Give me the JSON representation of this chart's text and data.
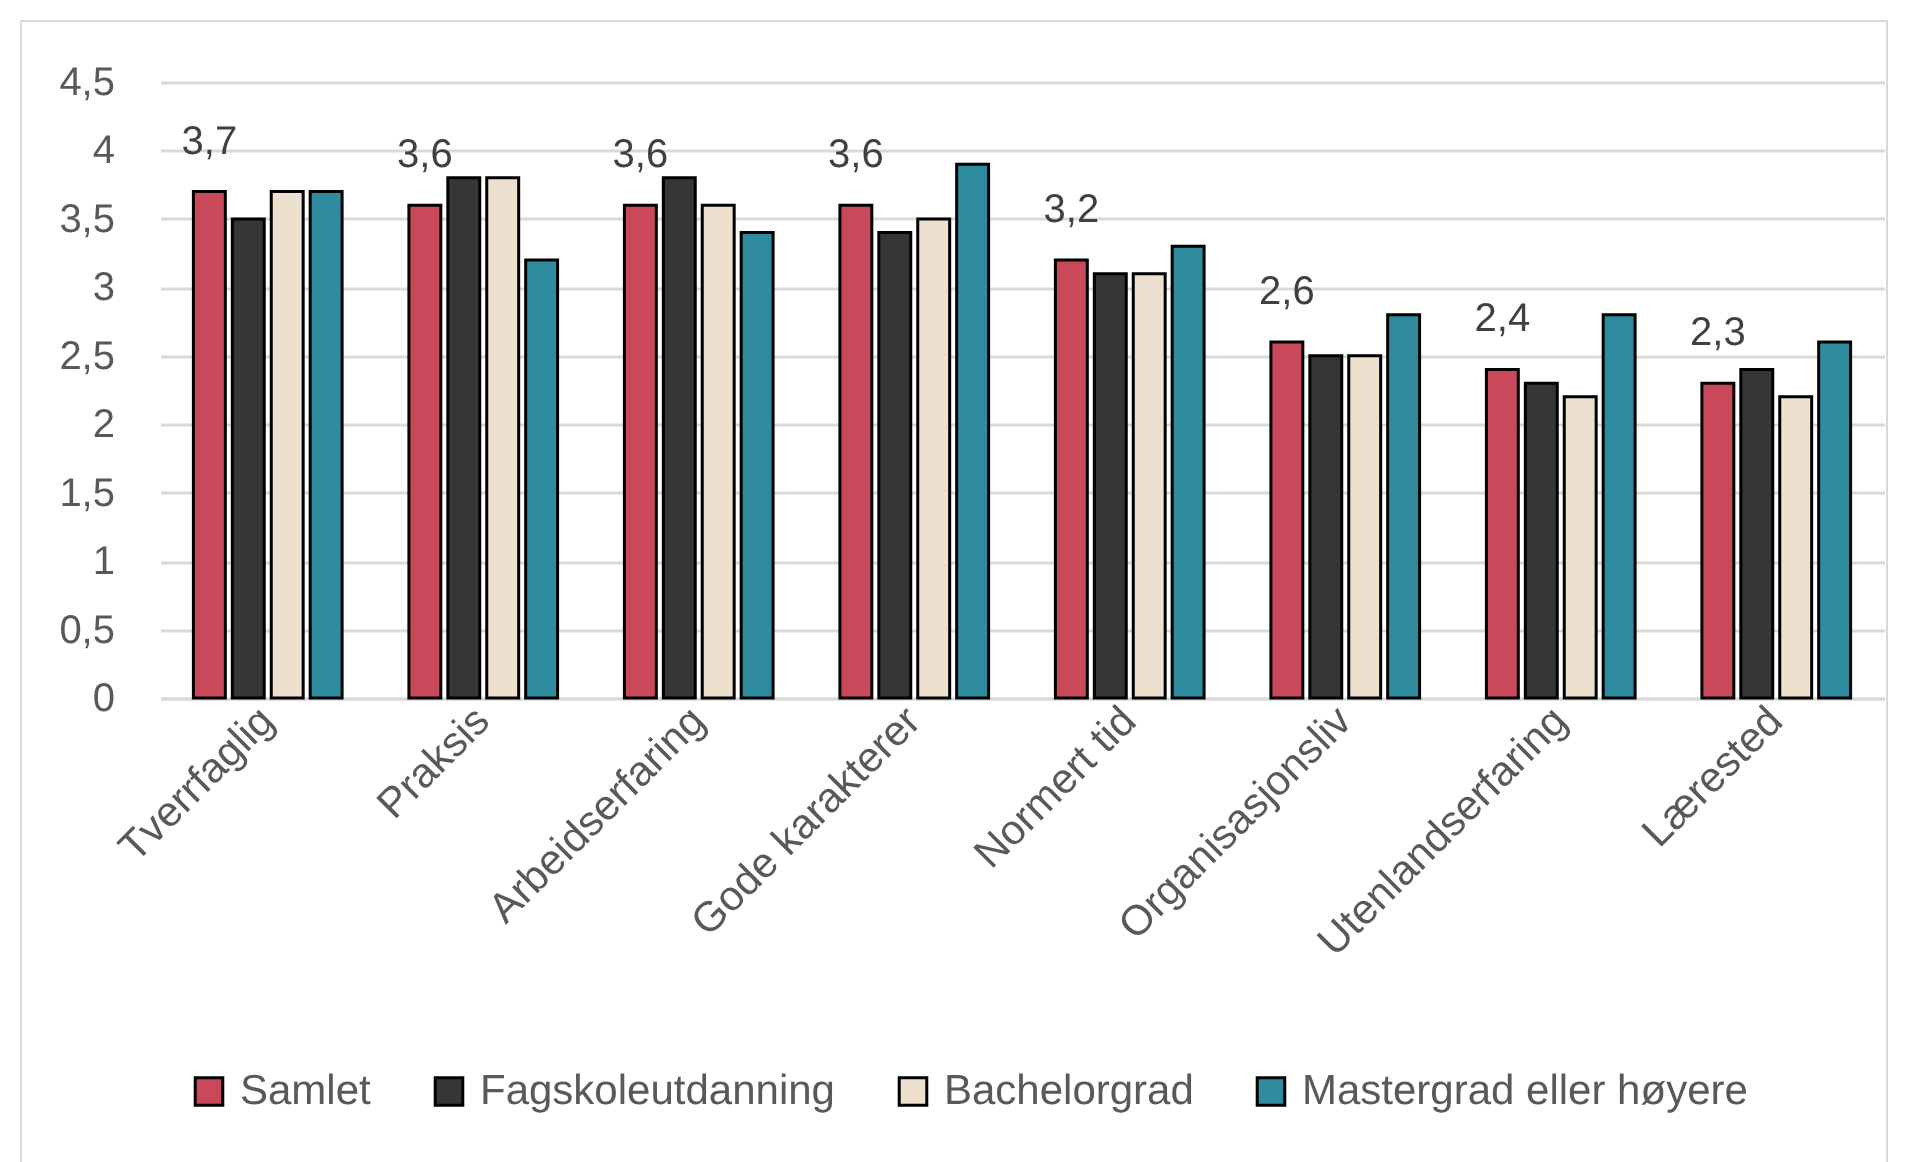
{
  "chart_data": {
    "type": "bar",
    "categories": [
      "Tverrfaglig",
      "Praksis",
      "Arbeidserfaring",
      "Gode karakterer",
      "Normert tid",
      "Organisasjonsliv",
      "Utenlandserfaring",
      "Lærested"
    ],
    "series": [
      {
        "name": "Samlet",
        "color": "#c9485a",
        "values": [
          3.7,
          3.6,
          3.6,
          3.6,
          3.2,
          2.6,
          2.4,
          2.3
        ],
        "value_labels": [
          "3,7",
          "3,6",
          "3,6",
          "3,6",
          "3,2",
          "2,6",
          "2,4",
          "2,3"
        ]
      },
      {
        "name": "Fagskoleutdanning",
        "color": "#363636",
        "values": [
          3.5,
          3.8,
          3.8,
          3.4,
          3.1,
          2.5,
          2.3,
          2.4
        ]
      },
      {
        "name": "Bachelorgrad",
        "color": "#ede0cf",
        "values": [
          3.7,
          3.8,
          3.6,
          3.5,
          3.1,
          2.5,
          2.2,
          2.2
        ]
      },
      {
        "name": "Mastergrad eller høyere",
        "color": "#2e8c9e",
        "values": [
          3.7,
          3.2,
          3.4,
          3.9,
          3.3,
          2.8,
          2.8,
          2.6
        ]
      }
    ],
    "ylim": [
      0,
      4.5
    ],
    "yticks": [
      0,
      {
        "value": 0.5,
        "label": "0,5"
      },
      1,
      {
        "value": 1.5,
        "label": "1,5"
      },
      2,
      {
        "value": 2.5,
        "label": "2,5"
      },
      3,
      {
        "value": 3.5,
        "label": "3,5"
      },
      4,
      {
        "value": 4.5,
        "label": "4,5"
      }
    ],
    "grid": "y",
    "legend": "bottom"
  }
}
